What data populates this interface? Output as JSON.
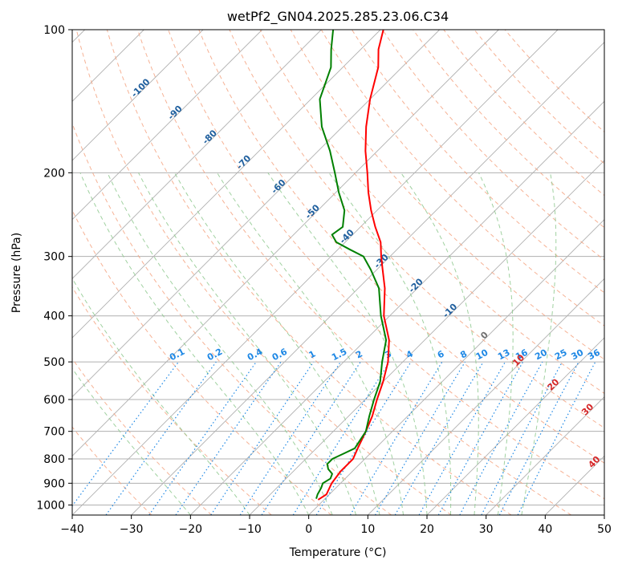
{
  "chart_data": {
    "type": "line",
    "title": "wetPf2_GN04.2025.285.23.06.C34",
    "xlabel": "Temperature (°C)",
    "ylabel": "Pressure (hPa)",
    "xlim": [
      -40,
      50
    ],
    "ylim": [
      1050,
      100
    ],
    "y_scale": "log",
    "grid": true,
    "x_ticks": [
      "−40",
      "−30",
      "−20",
      "−10",
      "0",
      "10",
      "20",
      "30",
      "40",
      "50"
    ],
    "x_tick_values": [
      -40,
      -30,
      -20,
      -10,
      0,
      10,
      20,
      30,
      40,
      50
    ],
    "y_ticks": [
      "100",
      "200",
      "300",
      "400",
      "500",
      "600",
      "700",
      "800",
      "900",
      "1000"
    ],
    "y_tick_values": [
      100,
      200,
      300,
      400,
      500,
      600,
      700,
      800,
      900,
      1000
    ],
    "skew": 45,
    "series": [
      {
        "name": "Temperature",
        "color": "#ff0000",
        "points": [
          [
            -1,
            975
          ],
          [
            -0.5,
            950
          ],
          [
            -1.5,
            900
          ],
          [
            -2,
            850
          ],
          [
            -2,
            800
          ],
          [
            -3,
            760
          ],
          [
            -4.5,
            700
          ],
          [
            -6,
            650
          ],
          [
            -8,
            600
          ],
          [
            -10,
            550
          ],
          [
            -12.5,
            500
          ],
          [
            -16,
            450
          ],
          [
            -21,
            400
          ],
          [
            -25.5,
            350
          ],
          [
            -29,
            320
          ],
          [
            -31.5,
            300
          ],
          [
            -34,
            280
          ],
          [
            -37.5,
            260
          ],
          [
            -41,
            240
          ],
          [
            -44.5,
            220
          ],
          [
            -48,
            200
          ],
          [
            -52,
            180
          ],
          [
            -56,
            160
          ],
          [
            -60,
            140
          ],
          [
            -64,
            120
          ],
          [
            -67,
            110
          ],
          [
            -69.5,
            100
          ]
        ]
      },
      {
        "name": "Dewpoint",
        "color": "#008000",
        "points": [
          [
            -1.5,
            970
          ],
          [
            -2,
            950
          ],
          [
            -2.5,
            920
          ],
          [
            -3,
            900
          ],
          [
            -2.5,
            880
          ],
          [
            -3,
            860
          ],
          [
            -4.5,
            840
          ],
          [
            -5.5,
            820
          ],
          [
            -5.5,
            800
          ],
          [
            -4.5,
            780
          ],
          [
            -3.5,
            760
          ],
          [
            -4.5,
            700
          ],
          [
            -6.5,
            650
          ],
          [
            -8.5,
            600
          ],
          [
            -10.5,
            550
          ],
          [
            -13.5,
            500
          ],
          [
            -16.5,
            450
          ],
          [
            -21.5,
            400
          ],
          [
            -26.5,
            350
          ],
          [
            -31,
            320
          ],
          [
            -34.5,
            300
          ],
          [
            -38,
            290
          ],
          [
            -41.5,
            280
          ],
          [
            -43.5,
            270
          ],
          [
            -43,
            260
          ],
          [
            -45.5,
            240
          ],
          [
            -49.5,
            220
          ],
          [
            -53.5,
            200
          ],
          [
            -58,
            180
          ],
          [
            -63.5,
            160
          ],
          [
            -68.5,
            140
          ],
          [
            -72,
            120
          ],
          [
            -75,
            110
          ],
          [
            -78,
            100
          ]
        ]
      }
    ],
    "dry_adiabats_c": [
      -30,
      -20,
      -10,
      0,
      10,
      20,
      30,
      40,
      50,
      60,
      70,
      80,
      90,
      100,
      110,
      120,
      130,
      140,
      150,
      160
    ],
    "moist_adiabats_c": [
      -20,
      -10,
      0,
      4,
      8,
      12,
      16,
      20,
      24,
      28,
      32,
      36
    ],
    "mixing_ratio_lines": [
      0.1,
      0.2,
      0.4,
      0.6,
      1,
      1.5,
      2,
      3,
      4,
      6,
      8,
      10,
      13,
      16,
      20,
      25,
      30,
      36
    ],
    "mixing_ratio_labels": [
      "0.1",
      "0.2",
      "0.4",
      "0.6",
      "1",
      "1.5",
      "2",
      "3",
      "4",
      "6",
      "8",
      "10",
      "13",
      "16",
      "20",
      "25",
      "30",
      "36"
    ],
    "isotherm_labels": [
      {
        "text": "-100",
        "value": -100
      },
      {
        "text": "-90",
        "value": -90
      },
      {
        "text": "-80",
        "value": -80
      },
      {
        "text": "-70",
        "value": -70
      },
      {
        "text": "-60",
        "value": -60
      },
      {
        "text": "-50",
        "value": -50
      },
      {
        "text": "-40",
        "value": -40
      },
      {
        "text": "-30",
        "value": -30
      },
      {
        "text": "-20",
        "value": -20
      },
      {
        "text": "-10",
        "value": -10
      }
    ],
    "freezing_label": {
      "text": "0",
      "value": 0
    },
    "warm_isotherm_labels": [
      {
        "text": "10",
        "value": 10
      },
      {
        "text": "20",
        "value": 20
      },
      {
        "text": "30",
        "value": 30
      },
      {
        "text": "40",
        "value": 40
      }
    ],
    "colors": {
      "temperature": "#ff0000",
      "dewpoint": "#008000",
      "isotherm_label": "#1f5f9e",
      "mixing_ratio": "#1e88e5",
      "warm_label": "#d62728",
      "freezing_label": "#707070",
      "dry_adiabat": "#f4a582",
      "moist_adiabat": "#8fc98f",
      "isotherm_line": "#b0b0b0",
      "grid": "#b0b0b0"
    }
  }
}
